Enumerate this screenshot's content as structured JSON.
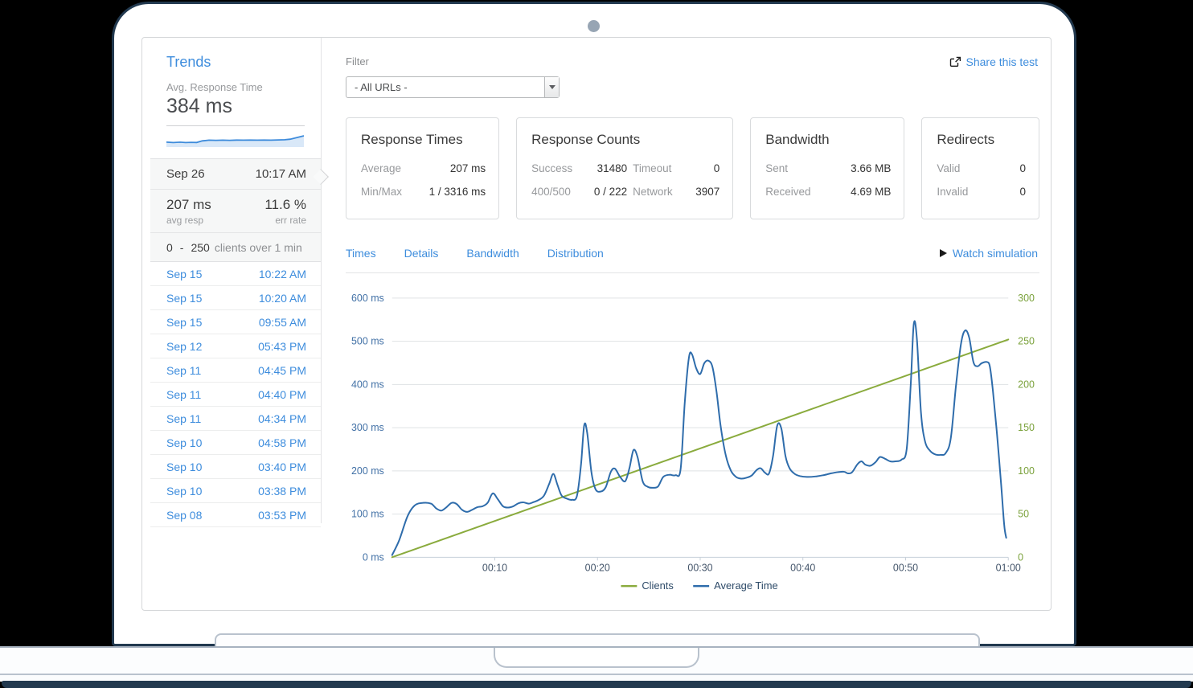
{
  "sidebar": {
    "title": "Trends",
    "metric_label": "Avg. Response Time",
    "metric_value": "384 ms",
    "sparkline": {
      "color": "#3d8bdb",
      "fill": "#d9e8f8",
      "points": [
        [
          0,
          0.28
        ],
        [
          5,
          0.24
        ],
        [
          10,
          0.27
        ],
        [
          14,
          0.24
        ],
        [
          18,
          0.26
        ],
        [
          22,
          0.25
        ],
        [
          26,
          0.38
        ],
        [
          31,
          0.44
        ],
        [
          36,
          0.43
        ],
        [
          41,
          0.44
        ],
        [
          46,
          0.43
        ],
        [
          51,
          0.45
        ],
        [
          56,
          0.44
        ],
        [
          61,
          0.45
        ],
        [
          66,
          0.44
        ],
        [
          71,
          0.45
        ],
        [
          76,
          0.44
        ],
        [
          81,
          0.46
        ],
        [
          86,
          0.47
        ],
        [
          90,
          0.52
        ],
        [
          95,
          0.66
        ],
        [
          100,
          0.8
        ]
      ]
    },
    "selected": {
      "date": "Sep 26",
      "time": "10:17 AM",
      "avg_value": "207 ms",
      "avg_label": "avg resp",
      "err_value": "11.6 %",
      "err_label": "err rate",
      "clients_min": "0",
      "clients_dash": "-",
      "clients_max": "250",
      "clients_suffix": "clients over 1 min"
    },
    "history": [
      {
        "date": "Sep 15",
        "time": "10:22 AM"
      },
      {
        "date": "Sep 15",
        "time": "10:20 AM"
      },
      {
        "date": "Sep 15",
        "time": "09:55 AM"
      },
      {
        "date": "Sep 12",
        "time": "05:43 PM"
      },
      {
        "date": "Sep 11",
        "time": "04:45 PM"
      },
      {
        "date": "Sep 11",
        "time": "04:40 PM"
      },
      {
        "date": "Sep 11",
        "time": "04:34 PM"
      },
      {
        "date": "Sep 10",
        "time": "04:58 PM"
      },
      {
        "date": "Sep 10",
        "time": "03:40 PM"
      },
      {
        "date": "Sep 10",
        "time": "03:38 PM"
      },
      {
        "date": "Sep 08",
        "time": "03:53 PM"
      }
    ]
  },
  "header": {
    "filter_label": "Filter",
    "filter_value": "- All URLs -",
    "share_label": "Share this test"
  },
  "cards": [
    {
      "id": "response-times",
      "title": "Response Times",
      "columns": 1,
      "rows": [
        [
          "Average",
          "207 ms"
        ],
        [
          "Min/Max",
          "1 / 3316 ms"
        ]
      ]
    },
    {
      "id": "response-counts",
      "title": "Response Counts",
      "columns": 2,
      "rows": [
        [
          "Success",
          "31480",
          "Timeout",
          "0"
        ],
        [
          "400/500",
          "0 / 222",
          "Network",
          "3907"
        ]
      ]
    },
    {
      "id": "bandwidth",
      "title": "Bandwidth",
      "columns": 1,
      "rows": [
        [
          "Sent",
          "3.66 MB"
        ],
        [
          "Received",
          "4.69 MB"
        ]
      ]
    },
    {
      "id": "redirects",
      "title": "Redirects",
      "columns": 1,
      "rows": [
        [
          "Valid",
          "0"
        ],
        [
          "Invalid",
          "0"
        ]
      ]
    }
  ],
  "tabs": [
    "Times",
    "Details",
    "Bandwidth",
    "Distribution"
  ],
  "watch_label": "Watch simulation",
  "chart_data": {
    "type": "line",
    "title": "",
    "x": {
      "range": [
        0,
        60
      ],
      "tick_values": [
        10,
        20,
        30,
        40,
        50,
        60
      ],
      "tick_labels": [
        "00:10",
        "00:20",
        "00:30",
        "00:40",
        "00:50",
        "01:00"
      ],
      "label_color": "#45566b"
    },
    "y_left": {
      "range": [
        0,
        600
      ],
      "tick_values": [
        0,
        100,
        200,
        300,
        400,
        500,
        600
      ],
      "tick_labels": [
        "0 ms",
        "100 ms",
        "200 ms",
        "300 ms",
        "400 ms",
        "500 ms",
        "600 ms"
      ],
      "color": "#4271a6"
    },
    "y_right": {
      "range": [
        0,
        300
      ],
      "tick_values": [
        0,
        50,
        100,
        150,
        200,
        250,
        300
      ],
      "tick_labels": [
        "0",
        "50",
        "100",
        "150",
        "200",
        "250",
        "300"
      ],
      "color": "#7ba23c"
    },
    "grid": true,
    "legend_position": "bottom",
    "legend_text_color": "#2d4a68",
    "series": [
      {
        "name": "Clients",
        "axis": "right",
        "color": "#8aab3d",
        "points": [
          [
            0,
            0
          ],
          [
            60,
            252
          ]
        ]
      },
      {
        "name": "Average Time",
        "axis": "left",
        "color": "#2e6cab",
        "points": [
          [
            0,
            5
          ],
          [
            0.7,
            40
          ],
          [
            1.5,
            95
          ],
          [
            2.2,
            120
          ],
          [
            3,
            126
          ],
          [
            3.8,
            124
          ],
          [
            4.3,
            113
          ],
          [
            4.8,
            108
          ],
          [
            5.3,
            116
          ],
          [
            5.8,
            126
          ],
          [
            6.3,
            123
          ],
          [
            6.8,
            110
          ],
          [
            7.3,
            105
          ],
          [
            7.8,
            110
          ],
          [
            8.3,
            116
          ],
          [
            8.8,
            118
          ],
          [
            9.3,
            126
          ],
          [
            9.8,
            148
          ],
          [
            10.3,
            134
          ],
          [
            10.8,
            118
          ],
          [
            11.3,
            115
          ],
          [
            11.8,
            118
          ],
          [
            12.3,
            125
          ],
          [
            12.8,
            127
          ],
          [
            13.3,
            124
          ],
          [
            13.8,
            128
          ],
          [
            14.3,
            133
          ],
          [
            14.8,
            143
          ],
          [
            15.3,
            170
          ],
          [
            15.7,
            193
          ],
          [
            16.1,
            168
          ],
          [
            16.5,
            143
          ],
          [
            17,
            136
          ],
          [
            17.5,
            133
          ],
          [
            18,
            142
          ],
          [
            18.4,
            215
          ],
          [
            18.7,
            305
          ],
          [
            19,
            288
          ],
          [
            19.4,
            198
          ],
          [
            19.8,
            158
          ],
          [
            20.3,
            152
          ],
          [
            20.8,
            162
          ],
          [
            21.3,
            198
          ],
          [
            21.7,
            205
          ],
          [
            22.2,
            186
          ],
          [
            22.7,
            176
          ],
          [
            23.1,
            205
          ],
          [
            23.5,
            248
          ],
          [
            23.9,
            232
          ],
          [
            24.4,
            176
          ],
          [
            24.9,
            163
          ],
          [
            25.4,
            161
          ],
          [
            25.9,
            164
          ],
          [
            26.4,
            186
          ],
          [
            27,
            191
          ],
          [
            27.6,
            190
          ],
          [
            28.1,
            205
          ],
          [
            28.5,
            360
          ],
          [
            28.9,
            462
          ],
          [
            29.2,
            470
          ],
          [
            29.6,
            438
          ],
          [
            30,
            424
          ],
          [
            30.4,
            449
          ],
          [
            30.8,
            455
          ],
          [
            31.2,
            440
          ],
          [
            31.6,
            382
          ],
          [
            32,
            302
          ],
          [
            32.5,
            235
          ],
          [
            33,
            200
          ],
          [
            33.5,
            186
          ],
          [
            34,
            182
          ],
          [
            34.5,
            184
          ],
          [
            35,
            189
          ],
          [
            35.5,
            202
          ],
          [
            35.9,
            206
          ],
          [
            36.3,
            196
          ],
          [
            36.7,
            194
          ],
          [
            37.1,
            235
          ],
          [
            37.5,
            305
          ],
          [
            37.9,
            298
          ],
          [
            38.3,
            235
          ],
          [
            38.7,
            206
          ],
          [
            39.2,
            193
          ],
          [
            39.7,
            188
          ],
          [
            40.4,
            186
          ],
          [
            41.2,
            187
          ],
          [
            42,
            190
          ],
          [
            42.7,
            194
          ],
          [
            43.4,
            197
          ],
          [
            44,
            198
          ],
          [
            44.4,
            194
          ],
          [
            44.8,
            197
          ],
          [
            45.3,
            215
          ],
          [
            45.7,
            222
          ],
          [
            46.1,
            214
          ],
          [
            46.6,
            212
          ],
          [
            47.1,
            221
          ],
          [
            47.5,
            232
          ],
          [
            48,
            228
          ],
          [
            48.5,
            222
          ],
          [
            49,
            222
          ],
          [
            49.6,
            226
          ],
          [
            50.1,
            250
          ],
          [
            50.5,
            400
          ],
          [
            50.8,
            540
          ],
          [
            51.1,
            505
          ],
          [
            51.5,
            335
          ],
          [
            51.9,
            268
          ],
          [
            52.4,
            246
          ],
          [
            52.9,
            238
          ],
          [
            53.4,
            237
          ],
          [
            53.9,
            241
          ],
          [
            54.4,
            275
          ],
          [
            54.9,
            395
          ],
          [
            55.4,
            495
          ],
          [
            55.8,
            525
          ],
          [
            56.2,
            508
          ],
          [
            56.6,
            452
          ],
          [
            57,
            442
          ],
          [
            57.4,
            449
          ],
          [
            57.9,
            452
          ],
          [
            58.2,
            442
          ],
          [
            58.5,
            385
          ],
          [
            58.9,
            285
          ],
          [
            59.3,
            170
          ],
          [
            59.6,
            75
          ],
          [
            59.8,
            45
          ]
        ]
      }
    ]
  },
  "colors": {
    "accent_link": "#3e8ddd",
    "frame_navy": "#22394f",
    "chart_blue": "#2e6cab",
    "chart_green": "#8aab3d",
    "gridline": "#dfe2e4",
    "axis_line": "#c7d0d9"
  }
}
